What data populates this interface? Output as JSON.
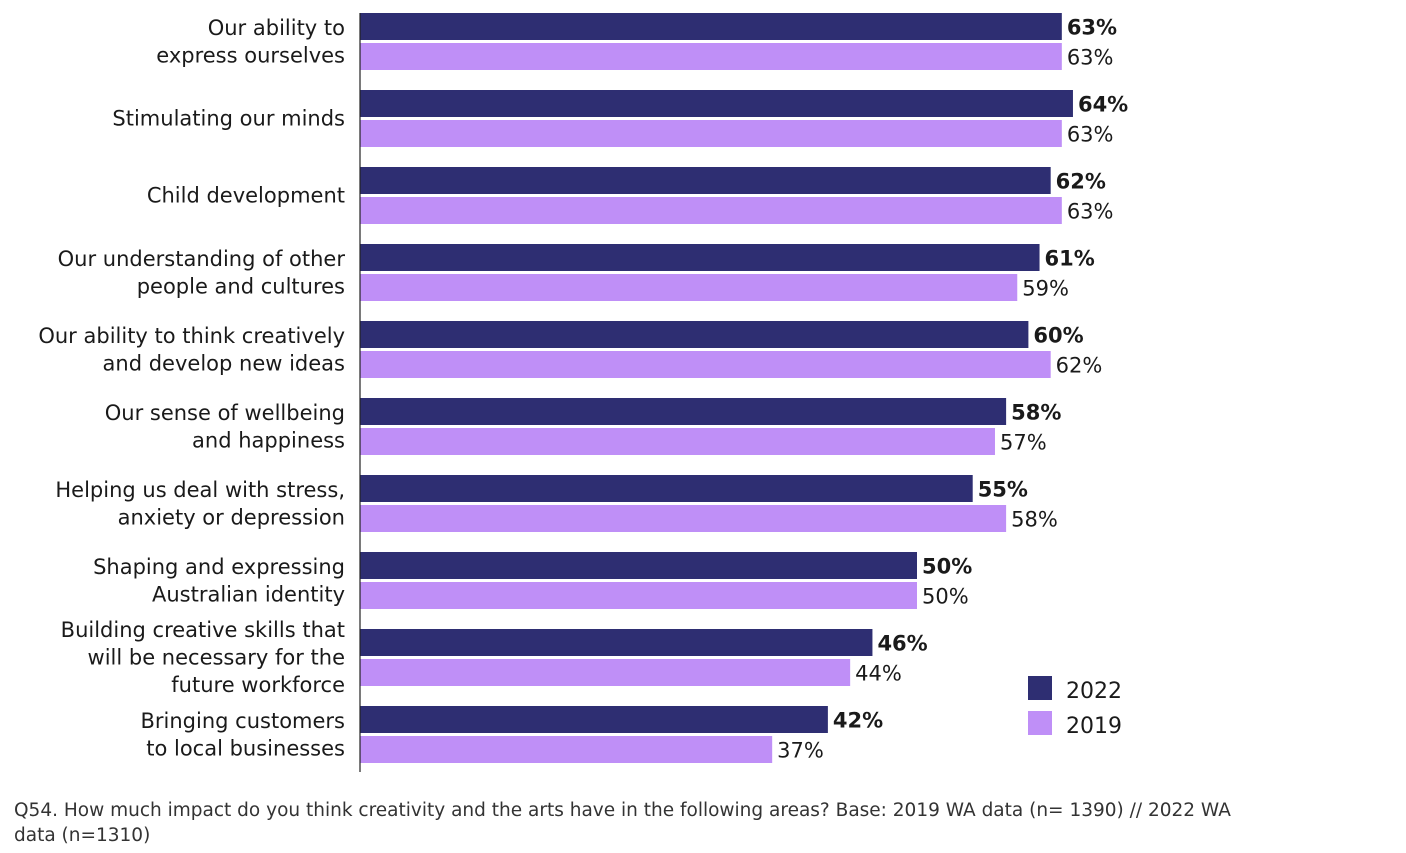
{
  "chart_data": {
    "type": "bar",
    "orientation": "horizontal",
    "title": "",
    "xlabel": "",
    "ylabel": "",
    "xlim": [
      0,
      70
    ],
    "grid": false,
    "legend_placement": "bottom-right",
    "categories": [
      [
        "Our ability to",
        "express ourselves"
      ],
      [
        "Stimulating our minds"
      ],
      [
        "Child development"
      ],
      [
        "Our understanding of other",
        "people and cultures"
      ],
      [
        "Our ability to think creatively",
        "and develop new ideas"
      ],
      [
        "Our sense of wellbeing",
        "and happiness"
      ],
      [
        "Helping us deal with stress,",
        "anxiety or depression"
      ],
      [
        "Shaping and expressing",
        "Australian identity"
      ],
      [
        "Building creative skills that",
        "will be necessary for the",
        "future workforce"
      ],
      [
        "Bringing customers",
        "to local businesses"
      ]
    ],
    "series": [
      {
        "name": "2022",
        "color": "#2e2e72",
        "values": [
          63,
          64,
          62,
          61,
          60,
          58,
          55,
          50,
          46,
          42
        ],
        "labels": [
          "63%",
          "64%",
          "62%",
          "61%",
          "60%",
          "58%",
          "55%",
          "50%",
          "46%",
          "42%"
        ]
      },
      {
        "name": "2019",
        "color": "#bf8ff7",
        "values": [
          63,
          63,
          63,
          59,
          62,
          57,
          58,
          50,
          44,
          37
        ],
        "labels": [
          "63%",
          "63%",
          "63%",
          "59%",
          "62%",
          "57%",
          "58%",
          "50%",
          "44%",
          "37%"
        ]
      }
    ]
  },
  "footnote": "Q54. How much impact do you think creativity and the arts have in the following areas? Base: 2019 WA data (n= 1390) // 2022 WA data (n=1310)"
}
